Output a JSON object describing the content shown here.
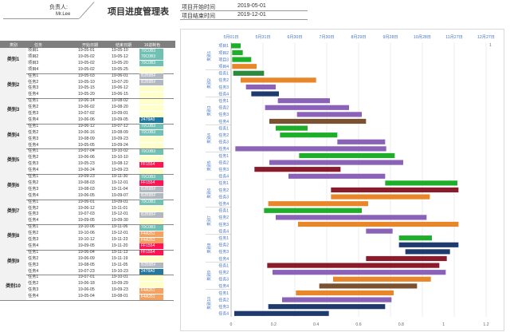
{
  "header": {
    "owner_label": "负责人:",
    "owner_name": "Mr.Lee",
    "title": "项目进度管理表",
    "start_label": "项目开始时间",
    "start_value": "2019-05-01",
    "end_label": "项目结束时间",
    "end_value": "2019-12-01"
  },
  "table": {
    "columns": [
      "类别",
      "任务",
      "开始日期",
      "结束日期",
      "16进制色"
    ],
    "groups": [
      {
        "category": "类别1",
        "rows": [
          {
            "task": "项目1",
            "start": "19-05-01",
            "end": "19-05-10",
            "color": "70C0B3"
          },
          {
            "task": "项目2",
            "start": "19-05-02",
            "end": "19-05-12",
            "color": "70C0B3"
          },
          {
            "task": "项目3",
            "start": "19-05-02",
            "end": "19-05-20",
            "color": "70C0B3"
          },
          {
            "task": "项目4",
            "start": "19-05-02",
            "end": "19-05-25",
            "color": ""
          }
        ]
      },
      {
        "category": "类别2",
        "rows": [
          {
            "task": "任务1",
            "start": "19-05-03",
            "end": "19-06-01",
            "color": "B2B8BF"
          },
          {
            "task": "任务2",
            "start": "19-05-10",
            "end": "19-07-20",
            "color": "B2B8BF"
          },
          {
            "task": "任务3",
            "start": "19-05-15",
            "end": "19-06-12",
            "color": ""
          },
          {
            "task": "任务4",
            "start": "19-05-20",
            "end": "19-06-15",
            "color": ""
          }
        ]
      },
      {
        "category": "类别3",
        "rows": [
          {
            "task": "任务1",
            "start": "19-06-14",
            "end": "19-08-02",
            "color": ""
          },
          {
            "task": "任务2",
            "start": "19-06-02",
            "end": "19-08-20",
            "color": ""
          },
          {
            "task": "任务3",
            "start": "19-07-02",
            "end": "19-09-01",
            "color": ""
          },
          {
            "task": "任务4",
            "start": "19-06-06",
            "end": "19-09-05",
            "color": "2478A0"
          }
        ]
      },
      {
        "category": "类别4",
        "rows": [
          {
            "task": "任务1",
            "start": "19-06-12",
            "end": "19-07-12",
            "color": "70C0B3"
          },
          {
            "task": "任务2",
            "start": "19-06-16",
            "end": "19-08-09",
            "color": "70C0B3"
          },
          {
            "task": "任务3",
            "start": "19-08-09",
            "end": "19-09-23",
            "color": ""
          },
          {
            "task": "任务4",
            "start": "19-05-05",
            "end": "19-09-24",
            "color": ""
          }
        ]
      },
      {
        "category": "类别5",
        "rows": [
          {
            "task": "任务1",
            "start": "19-07-04",
            "end": "19-10-02",
            "color": "70C0B3"
          },
          {
            "task": "任务2",
            "start": "19-06-06",
            "end": "19-10-10",
            "color": ""
          },
          {
            "task": "任务3",
            "start": "19-05-23",
            "end": "19-08-12",
            "color": "FF1554"
          },
          {
            "task": "任务4",
            "start": "19-06-24",
            "end": "19-09-23",
            "color": ""
          }
        ]
      },
      {
        "category": "类别6",
        "rows": [
          {
            "task": "任务1",
            "start": "19-09-23",
            "end": "19-11-30",
            "color": "70C0B3"
          },
          {
            "task": "任务2",
            "start": "19-08-03",
            "end": "19-12-01",
            "color": "FF1554"
          },
          {
            "task": "任务3",
            "start": "19-08-03",
            "end": "19-11-04",
            "color": "B2B8BF"
          },
          {
            "task": "任务4",
            "start": "19-06-05",
            "end": "19-09-07",
            "color": "B2B8BF"
          }
        ]
      },
      {
        "category": "类别7",
        "rows": [
          {
            "task": "任务1",
            "start": "19-06-01",
            "end": "19-09-01",
            "color": "70C0B3"
          },
          {
            "task": "任务2",
            "start": "19-06-12",
            "end": "19-11-01",
            "color": ""
          },
          {
            "task": "任务3",
            "start": "19-07-03",
            "end": "19-12-01",
            "color": "B2B8BF"
          },
          {
            "task": "任务4",
            "start": "19-09-05",
            "end": "19-09-30",
            "color": ""
          }
        ]
      },
      {
        "category": "类别8",
        "rows": [
          {
            "task": "任务1",
            "start": "19-10-06",
            "end": "19-11-06",
            "color": "70C0B3"
          },
          {
            "task": "任务2",
            "start": "19-10-06",
            "end": "19-12-01",
            "color": "F4A261"
          },
          {
            "task": "任务3",
            "start": "19-10-12",
            "end": "19-11-23",
            "color": "F4A261"
          },
          {
            "task": "任务4",
            "start": "19-09-05",
            "end": "19-11-20",
            "color": "FF1554"
          }
        ]
      },
      {
        "category": "类别9",
        "rows": [
          {
            "task": "任务1",
            "start": "19-06-04",
            "end": "19-11-13",
            "color": "FF1554"
          },
          {
            "task": "任务2",
            "start": "19-06-09",
            "end": "19-11-19",
            "color": ""
          },
          {
            "task": "任务3",
            "start": "19-08-05",
            "end": "19-11-05",
            "color": "B2B8BF"
          },
          {
            "task": "任务4",
            "start": "19-07-23",
            "end": "19-10-23",
            "color": "2478A0"
          }
        ]
      },
      {
        "category": "类别10",
        "rows": [
          {
            "task": "任务1",
            "start": "19-07-01",
            "end": "19-10-01",
            "color": ""
          },
          {
            "task": "任务2",
            "start": "19-06-18",
            "end": "19-09-29",
            "color": ""
          },
          {
            "task": "任务3",
            "start": "19-06-05",
            "end": "19-09-23",
            "color": "F4A261"
          },
          {
            "task": "任务4",
            "start": "19-05-04",
            "end": "19-08-01",
            "color": "F4A261"
          }
        ]
      }
    ],
    "color_map": {
      "70C0B3": "#70C0B3",
      "B2B8BF": "#B2B8BF",
      "2478A0": "#2478A0",
      "FF1554": "#FF1554",
      "F4A261": "#F4A261",
      "": "#FFFFCC"
    }
  },
  "chart_data": {
    "type": "bar",
    "orientation": "horizontal-gantt",
    "top_ticks": [
      "5月01日",
      "5月31日",
      "6月30日",
      "7月30日",
      "8月29日",
      "9月28日",
      "10月28日",
      "11月27日",
      "12月27日"
    ],
    "bottom_ticks": [
      "0",
      "0.2",
      "0.4",
      "0.6",
      "0.8",
      "1",
      "1.2"
    ],
    "secondary_axis_label": "1",
    "categories": [
      "类别1",
      "类别2",
      "类别3",
      "类别4",
      "类别5",
      "类别6",
      "类别7",
      "类别8",
      "类别9",
      "类别10"
    ],
    "rows": [
      {
        "category": "类别1",
        "task": "项目1",
        "start": 0,
        "end": 9,
        "color": "#1fae2a"
      },
      {
        "category": "类别1",
        "task": "项目2",
        "start": 1,
        "end": 11,
        "color": "#1fae2a"
      },
      {
        "category": "类别1",
        "task": "项目3",
        "start": 1,
        "end": 19,
        "color": "#1fae2a"
      },
      {
        "category": "类别1",
        "task": "项目4",
        "start": 1,
        "end": 24,
        "color": "#e8872a"
      },
      {
        "category": "类别2",
        "task": "任务1",
        "start": 2,
        "end": 31,
        "color": "#2b8a3e"
      },
      {
        "category": "类别2",
        "task": "任务2",
        "start": 9,
        "end": 80,
        "color": "#e8872a"
      },
      {
        "category": "类别2",
        "task": "任务3",
        "start": 14,
        "end": 42,
        "color": "#8a62b8"
      },
      {
        "category": "类别2",
        "task": "任务4",
        "start": 19,
        "end": 45,
        "color": "#1f3b6e"
      },
      {
        "category": "类别3",
        "task": "任务1",
        "start": 44,
        "end": 93,
        "color": "#8a62b8"
      },
      {
        "category": "类别3",
        "task": "任务2",
        "start": 32,
        "end": 111,
        "color": "#8a62b8"
      },
      {
        "category": "类别3",
        "task": "任务3",
        "start": 62,
        "end": 123,
        "color": "#8a62b8"
      },
      {
        "category": "类别3",
        "task": "任务4",
        "start": 36,
        "end": 127,
        "color": "#7a5230"
      },
      {
        "category": "类别4",
        "task": "任务1",
        "start": 42,
        "end": 72,
        "color": "#1fae2a"
      },
      {
        "category": "类别4",
        "task": "任务2",
        "start": 46,
        "end": 100,
        "color": "#1fae2a"
      },
      {
        "category": "类别4",
        "task": "任务3",
        "start": 100,
        "end": 145,
        "color": "#8a62b8"
      },
      {
        "category": "类别4",
        "task": "任务4",
        "start": 4,
        "end": 146,
        "color": "#8a62b8"
      },
      {
        "category": "类别5",
        "task": "任务1",
        "start": 64,
        "end": 154,
        "color": "#1fae2a"
      },
      {
        "category": "类别5",
        "task": "任务2",
        "start": 36,
        "end": 162,
        "color": "#8a62b8"
      },
      {
        "category": "类别5",
        "task": "任务3",
        "start": 22,
        "end": 103,
        "color": "#8b1a2a"
      },
      {
        "category": "类别5",
        "task": "任务4",
        "start": 54,
        "end": 145,
        "color": "#8a62b8"
      },
      {
        "category": "类别6",
        "task": "任务1",
        "start": 145,
        "end": 213,
        "color": "#1fae2a"
      },
      {
        "category": "类别6",
        "task": "任务2",
        "start": 94,
        "end": 214,
        "color": "#8b1a2a"
      },
      {
        "category": "类别6",
        "task": "任务3",
        "start": 94,
        "end": 187,
        "color": "#e8872a"
      },
      {
        "category": "类别6",
        "task": "任务4",
        "start": 35,
        "end": 129,
        "color": "#e8872a"
      },
      {
        "category": "类别7",
        "task": "任务1",
        "start": 31,
        "end": 123,
        "color": "#1fae2a"
      },
      {
        "category": "类别7",
        "task": "任务2",
        "start": 42,
        "end": 184,
        "color": "#8a62b8"
      },
      {
        "category": "类别7",
        "task": "任务3",
        "start": 63,
        "end": 214,
        "color": "#e8872a"
      },
      {
        "category": "类别7",
        "task": "任务4",
        "start": 127,
        "end": 152,
        "color": "#8a62b8"
      },
      {
        "category": "类别8",
        "task": "任务1",
        "start": 158,
        "end": 189,
        "color": "#1fae2a"
      },
      {
        "category": "类别8",
        "task": "任务2",
        "start": 158,
        "end": 214,
        "color": "#1f3b6e"
      },
      {
        "category": "类别8",
        "task": "任务3",
        "start": 164,
        "end": 206,
        "color": "#1f3b6e"
      },
      {
        "category": "类别8",
        "task": "任务4",
        "start": 127,
        "end": 203,
        "color": "#8b1a2a"
      },
      {
        "category": "类别9",
        "task": "任务1",
        "start": 34,
        "end": 196,
        "color": "#8b1a2a"
      },
      {
        "category": "类别9",
        "task": "任务2",
        "start": 39,
        "end": 202,
        "color": "#8a62b8"
      },
      {
        "category": "类别9",
        "task": "任务3",
        "start": 96,
        "end": 188,
        "color": "#e8872a"
      },
      {
        "category": "类别9",
        "task": "任务4",
        "start": 83,
        "end": 175,
        "color": "#7a5230"
      },
      {
        "category": "类别10",
        "task": "任务1",
        "start": 61,
        "end": 153,
        "color": "#e8872a"
      },
      {
        "category": "类别10",
        "task": "任务2",
        "start": 48,
        "end": 151,
        "color": "#8a62b8"
      },
      {
        "category": "类别10",
        "task": "任务3",
        "start": 35,
        "end": 145,
        "color": "#1f3b6e"
      },
      {
        "category": "类别10",
        "task": "任务4",
        "start": 3,
        "end": 92,
        "color": "#1f3b6e"
      }
    ]
  }
}
